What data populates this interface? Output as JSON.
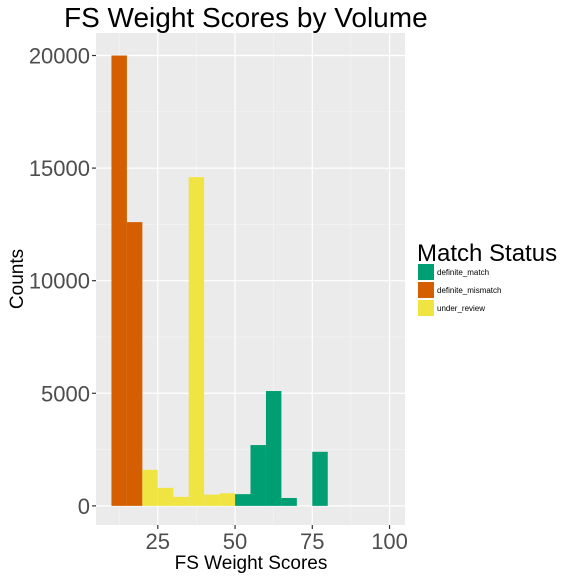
{
  "chart_data": {
    "type": "bar",
    "subtype": "stacked-histogram",
    "title": "FS Weight Scores by Volume",
    "xlabel": "FS Weight Scores",
    "ylabel": "Counts",
    "xlim": [
      5,
      105
    ],
    "ylim": [
      -850,
      21000
    ],
    "x_ticks": [
      25,
      50,
      75,
      100
    ],
    "y_ticks": [
      0,
      5000,
      10000,
      15000,
      20000
    ],
    "grid": true,
    "legend": {
      "title": "Match Status",
      "position": "right"
    },
    "series": [
      {
        "name": "definite_match",
        "color": "#009E73",
        "bins": [
          {
            "x0": 50,
            "x1": 55,
            "value": 520
          },
          {
            "x0": 55,
            "x1": 60,
            "value": 2700
          },
          {
            "x0": 60,
            "x1": 65,
            "value": 5100
          },
          {
            "x0": 65,
            "x1": 70,
            "value": 350
          },
          {
            "x0": 75,
            "x1": 80,
            "value": 2400
          }
        ]
      },
      {
        "name": "definite_mismatch",
        "color": "#D55E00",
        "bins": [
          {
            "x0": 10,
            "x1": 15,
            "value": 20000
          },
          {
            "x0": 15,
            "x1": 20,
            "value": 12600
          }
        ]
      },
      {
        "name": "under_review",
        "color": "#F0E442",
        "bins": [
          {
            "x0": 20,
            "x1": 25,
            "value": 1600
          },
          {
            "x0": 25,
            "x1": 30,
            "value": 800
          },
          {
            "x0": 30,
            "x1": 35,
            "value": 400
          },
          {
            "x0": 35,
            "x1": 40,
            "value": 14600
          },
          {
            "x0": 40,
            "x1": 45,
            "value": 500
          },
          {
            "x0": 45,
            "x1": 50,
            "value": 560
          }
        ]
      }
    ]
  }
}
